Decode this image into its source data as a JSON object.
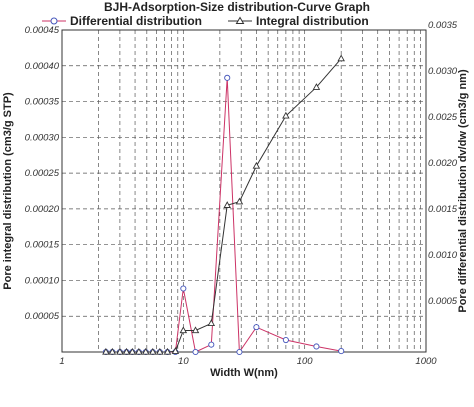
{
  "chart_data": {
    "type": "line",
    "title": "BJH-Adsorption-Size distribution-Curve Graph",
    "xlabel": "Width W(nm)",
    "ylabel_left": "Pore integral distribution (cm3/g STP)",
    "ylabel_right": "Pore differential distribution dv/dw (cm3/g nm)",
    "x_scale": "log",
    "xlim": [
      1,
      1000
    ],
    "x_ticks": [
      "1",
      "10",
      "100",
      "1000"
    ],
    "ylim_left": [
      0,
      0.00045
    ],
    "y_ticks_left": [
      "0.00005",
      "0.00010",
      "0.00015",
      "0.00020",
      "0.00025",
      "0.00030",
      "0.00035",
      "0.00040",
      "0.00045"
    ],
    "ylim_right": [
      0,
      0.0035
    ],
    "y_ticks_right": [
      "0.0005",
      "0.0010",
      "0.0015",
      "0.0020",
      "0.0025",
      "0.0030",
      "0.0035"
    ],
    "grid": true,
    "legend_position": "top",
    "series": [
      {
        "name": "Differential distribution",
        "axis": "right",
        "color": "#cc3366",
        "marker": "circle",
        "x": [
          2.3,
          2.6,
          3.0,
          3.4,
          3.8,
          4.3,
          4.9,
          5.6,
          6.4,
          7.4,
          8.6,
          10.0,
          12.6,
          17.0,
          23.0,
          29.0,
          40.0,
          70.0,
          125.0,
          200.0
        ],
        "values": [
          0,
          0,
          0,
          0,
          0,
          0,
          0,
          0,
          0,
          0,
          0,
          0.00069,
          0,
          8e-05,
          0.00298,
          0,
          0.00027,
          0.00013,
          6e-05,
          1e-05
        ]
      },
      {
        "name": "Integral distribution",
        "axis": "left",
        "color": "#333333",
        "marker": "triangle",
        "x": [
          2.3,
          2.6,
          3.0,
          3.4,
          3.8,
          4.3,
          4.9,
          5.6,
          6.4,
          7.4,
          8.6,
          10.0,
          12.6,
          17.0,
          23.0,
          29.0,
          40.0,
          70.0,
          125.0,
          200.0
        ],
        "values": [
          0,
          0,
          0,
          0,
          0,
          0,
          0,
          0,
          0,
          0,
          1e-06,
          3e-05,
          3e-05,
          4e-05,
          0.000205,
          0.00021,
          0.00026,
          0.00033,
          0.00037,
          0.00041
        ]
      }
    ]
  }
}
